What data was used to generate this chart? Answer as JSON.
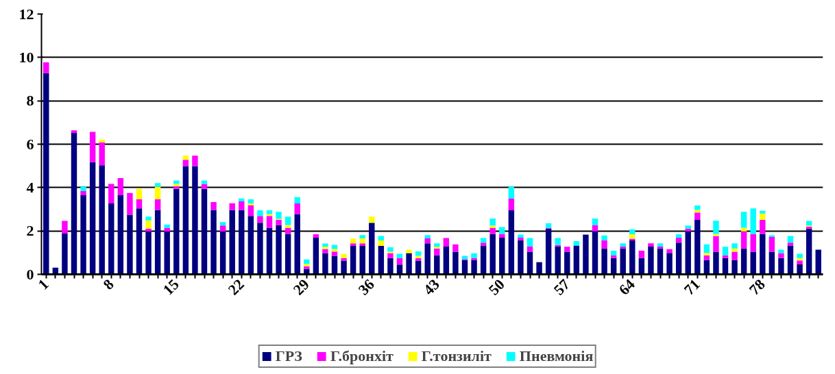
{
  "chart_data": {
    "type": "bar",
    "stacked": true,
    "categories": [
      "1",
      null,
      null,
      null,
      null,
      null,
      null,
      "8",
      null,
      null,
      null,
      null,
      null,
      null,
      "15",
      null,
      null,
      null,
      null,
      null,
      null,
      "22",
      null,
      null,
      null,
      null,
      null,
      null,
      "29",
      null,
      null,
      null,
      null,
      null,
      null,
      "36",
      null,
      null,
      null,
      null,
      null,
      null,
      "43",
      null,
      null,
      null,
      null,
      null,
      null,
      "50",
      null,
      null,
      null,
      null,
      null,
      null,
      "57",
      null,
      null,
      null,
      null,
      null,
      null,
      "64",
      null,
      null,
      null,
      null,
      null,
      null,
      "71",
      null,
      null,
      null,
      null,
      null,
      null,
      "78",
      null,
      null,
      null,
      null,
      null,
      null
    ],
    "series": [
      {
        "name": "ГРЗ",
        "color": "#000080",
        "values": [
          9.28,
          0.31,
          1.88,
          6.52,
          3.65,
          5.17,
          5.03,
          3.27,
          3.65,
          2.75,
          3.04,
          1.97,
          2.97,
          1.97,
          3.94,
          4.99,
          4.99,
          3.94,
          2.97,
          1.97,
          2.96,
          2.96,
          2.69,
          2.38,
          2.15,
          2.27,
          1.86,
          2.78,
          0.25,
          1.69,
          0.98,
          0.85,
          0.63,
          1.31,
          1.31,
          2.38,
          1.31,
          0.75,
          0.45,
          0.98,
          0.63,
          1.43,
          0.88,
          1.28,
          1.04,
          0.66,
          0.66,
          1.33,
          1.86,
          1.69,
          2.95,
          1.57,
          1.04,
          0.56,
          2.11,
          1.28,
          1.04,
          1.33,
          1.83,
          1.98,
          1.19,
          0.75,
          1.19,
          1.56,
          0.75,
          1.28,
          1.19,
          0.99,
          1.46,
          1.98,
          2.51,
          0.66,
          1.04,
          0.75,
          0.66,
          1.19,
          1.04,
          1.86,
          1.04,
          0.75,
          1.33,
          0.46,
          2.11,
          1.14
        ]
      },
      {
        "name": "Г.бронхіт",
        "color": "#ff00ff",
        "values": [
          0.49,
          0,
          0.58,
          0.12,
          0.19,
          1.4,
          1.06,
          0.9,
          0.79,
          1.0,
          0.42,
          0.14,
          0.49,
          0.18,
          0.12,
          0.29,
          0.48,
          0.23,
          0.36,
          0.28,
          0.32,
          0.4,
          0.5,
          0.31,
          0.54,
          0.25,
          0.29,
          0.49,
          0.12,
          0.16,
          0.19,
          0.2,
          0.12,
          0.12,
          0.12,
          0,
          0,
          0.23,
          0.3,
          0,
          0.12,
          0.23,
          0.31,
          0.39,
          0.34,
          0.04,
          0.09,
          0.13,
          0.29,
          0.17,
          0.54,
          0.12,
          0.24,
          0,
          0.04,
          0.07,
          0.23,
          0,
          0,
          0.29,
          0.38,
          0.13,
          0.09,
          0.08,
          0.34,
          0.15,
          0.09,
          0.17,
          0.23,
          0.13,
          0.34,
          0.22,
          0.73,
          0.13,
          0.38,
          0.79,
          0.82,
          0.65,
          0.68,
          0.22,
          0.13,
          0.18,
          0.09,
          0
        ]
      },
      {
        "name": "Г.тонзиліт",
        "color": "#ffff00",
        "values": [
          0,
          0,
          0,
          0,
          0,
          0,
          0.12,
          0,
          0,
          0,
          0.48,
          0.38,
          0.58,
          0,
          0.11,
          0.19,
          0,
          0,
          0,
          0,
          0,
          0,
          0.08,
          0,
          0.09,
          0.04,
          0.12,
          0,
          0.11,
          0,
          0.1,
          0.12,
          0.19,
          0.22,
          0.23,
          0.28,
          0.25,
          0.07,
          0,
          0.16,
          0.1,
          0,
          0.08,
          0,
          0,
          0,
          0,
          0,
          0.1,
          0,
          0,
          0,
          0,
          0,
          0,
          0,
          0,
          0,
          0,
          0,
          0,
          0,
          0,
          0.21,
          0,
          0,
          0,
          0,
          0,
          0,
          0.12,
          0.11,
          0.09,
          0,
          0.15,
          0.17,
          0,
          0.29,
          0,
          0,
          0,
          0.11,
          0.05,
          0
        ]
      },
      {
        "name": "Пневмонія",
        "color": "#00ffff",
        "values": [
          0,
          0,
          0,
          0,
          0.2,
          0,
          0,
          0,
          0,
          0,
          0,
          0.17,
          0.17,
          0.15,
          0.16,
          0,
          0,
          0.16,
          0,
          0.16,
          0,
          0.14,
          0.19,
          0.26,
          0.17,
          0.32,
          0.39,
          0.29,
          0.21,
          0,
          0.15,
          0.19,
          0,
          0,
          0.15,
          0,
          0.21,
          0.2,
          0.2,
          0,
          0.21,
          0.15,
          0.16,
          0,
          0,
          0.15,
          0.22,
          0.21,
          0.32,
          0.32,
          0.55,
          0.14,
          0.39,
          0,
          0.2,
          0.32,
          0,
          0.2,
          0,
          0.3,
          0.22,
          0.21,
          0.15,
          0.23,
          0,
          0,
          0.15,
          0,
          0.16,
          0.14,
          0.2,
          0.39,
          0.61,
          0.39,
          0.24,
          0.73,
          1.18,
          0.13,
          0.08,
          0.17,
          0.31,
          0.2,
          0.21,
          0
        ]
      }
    ],
    "ylim": [
      0,
      12
    ],
    "yticks": [
      0,
      2,
      4,
      6,
      8,
      10,
      12
    ],
    "grid": "y",
    "legend": "bottom"
  }
}
